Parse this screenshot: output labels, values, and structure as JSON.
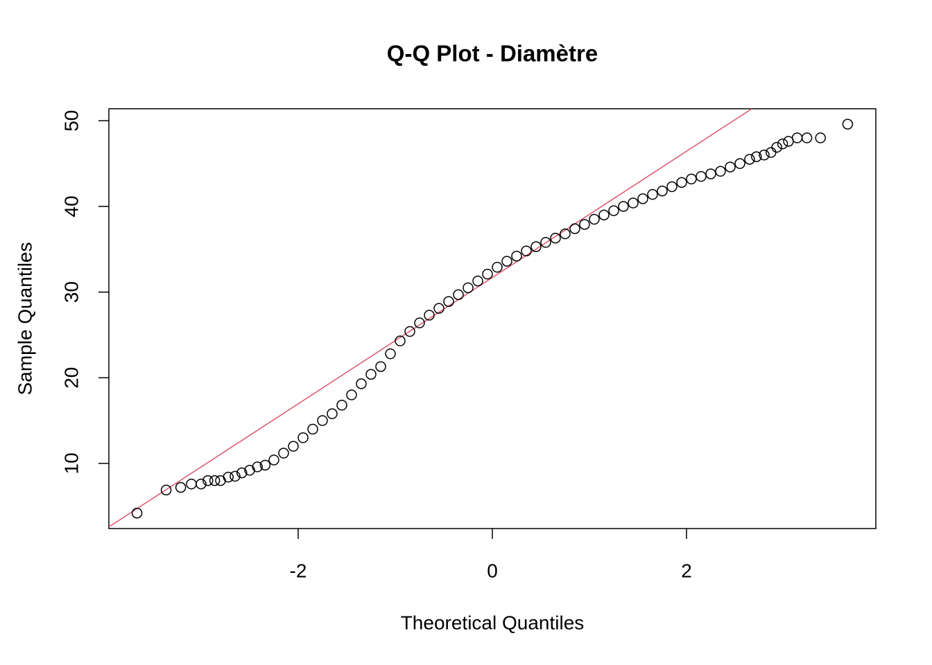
{
  "chart_data": {
    "type": "scatter",
    "title": "Q-Q Plot - Diamètre",
    "x_label": "Theoretical Quantiles",
    "y_label": "Sample Quantiles",
    "x": [
      -3.66,
      -3.36,
      -3.21,
      -3.1,
      -3.0,
      -2.93,
      -2.86,
      -2.8,
      -2.72,
      -2.65,
      -2.58,
      -2.5,
      -2.42,
      -2.34,
      -2.25,
      -2.15,
      -2.05,
      -1.95,
      -1.85,
      -1.75,
      -1.65,
      -1.55,
      -1.45,
      -1.35,
      -1.25,
      -1.15,
      -1.05,
      -0.95,
      -0.85,
      -0.75,
      -0.65,
      -0.55,
      -0.45,
      -0.35,
      -0.25,
      -0.15,
      -0.05,
      0.05,
      0.15,
      0.25,
      0.35,
      0.45,
      0.55,
      0.65,
      0.75,
      0.85,
      0.95,
      1.05,
      1.15,
      1.25,
      1.35,
      1.45,
      1.55,
      1.65,
      1.75,
      1.85,
      1.95,
      2.05,
      2.15,
      2.25,
      2.35,
      2.45,
      2.55,
      2.65,
      2.72,
      2.8,
      2.87,
      2.93,
      2.99,
      3.05,
      3.14,
      3.24,
      3.38,
      3.66
    ],
    "values": [
      4.2,
      6.9,
      7.2,
      7.6,
      7.6,
      8.0,
      8.0,
      8.0,
      8.4,
      8.5,
      8.9,
      9.2,
      9.6,
      9.8,
      10.4,
      11.2,
      12.0,
      13.0,
      14.0,
      15.0,
      15.8,
      16.8,
      18.0,
      19.3,
      20.4,
      21.3,
      22.8,
      24.3,
      25.4,
      26.4,
      27.3,
      28.1,
      28.9,
      29.7,
      30.5,
      31.3,
      32.1,
      32.9,
      33.6,
      34.2,
      34.8,
      35.3,
      35.8,
      36.3,
      36.8,
      37.4,
      37.9,
      38.5,
      39.0,
      39.5,
      40.0,
      40.4,
      40.9,
      41.4,
      41.8,
      42.3,
      42.8,
      43.2,
      43.5,
      43.8,
      44.1,
      44.6,
      45.0,
      45.5,
      45.8,
      46.0,
      46.3,
      46.9,
      47.3,
      47.6,
      48.0,
      48.0,
      48.0,
      49.6
    ],
    "color": "#000000",
    "reference_line": {
      "intercept": 31.7,
      "slope": 7.37,
      "color": "#df536b"
    },
    "xlim": [
      -3.95,
      3.95
    ],
    "ylim": [
      2.4,
      51.4
    ],
    "xticks": [
      -2,
      0,
      2
    ],
    "yticks": [
      10,
      20,
      30,
      40,
      50
    ],
    "grid": false
  }
}
